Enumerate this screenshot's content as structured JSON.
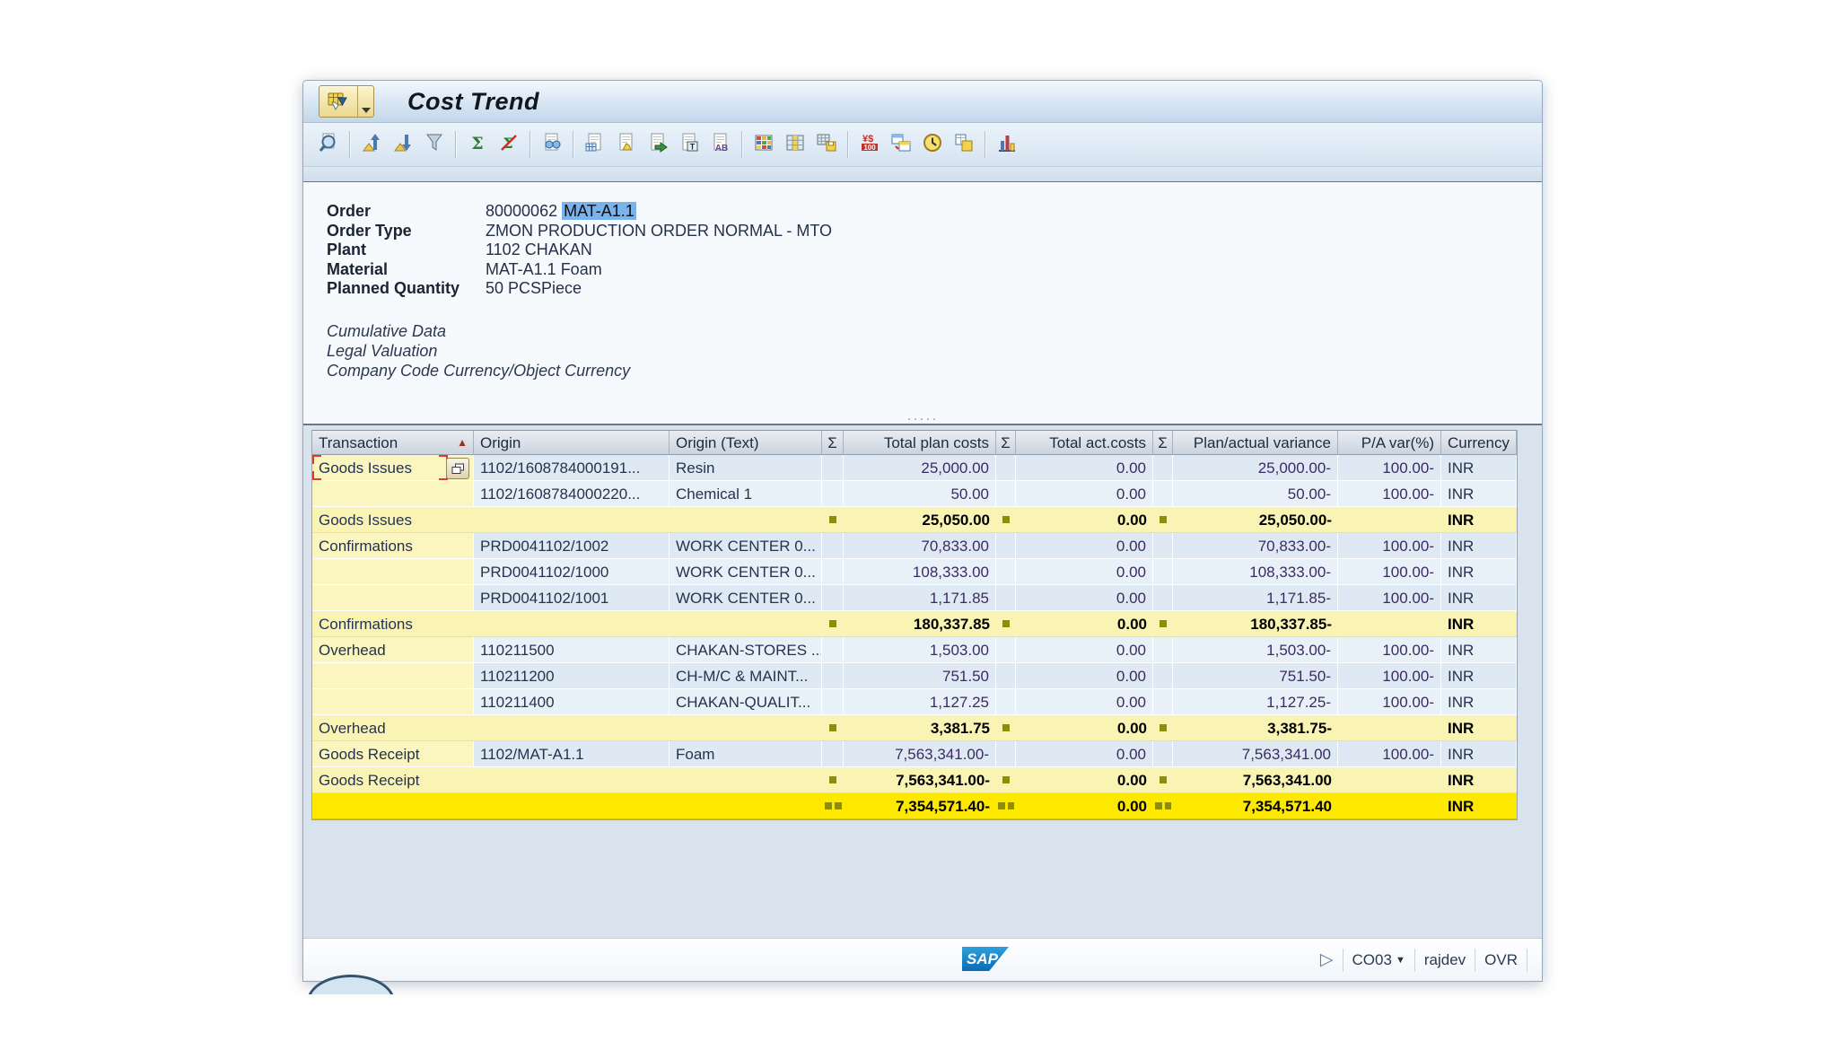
{
  "window": {
    "title": "Cost Trend"
  },
  "toolbar": {
    "groups": [
      [
        "details"
      ],
      [
        "sort-ascending",
        "sort-descending",
        "filter"
      ],
      [
        "sum",
        "subtotal"
      ],
      [
        "print-preview"
      ],
      [
        "local-file",
        "mail",
        "export",
        "word-processing",
        "abc-analysis"
      ],
      [
        "views",
        "change-layout",
        "save-layout"
      ],
      [
        "currency",
        "graph",
        "history",
        "layout"
      ],
      [
        "chart"
      ]
    ]
  },
  "header": {
    "fields": [
      {
        "label": "Order",
        "value": "80000062",
        "highlight": "MAT-A1.1"
      },
      {
        "label": "Order Type",
        "value": "ZMON PRODUCTION ORDER NORMAL - MTO"
      },
      {
        "label": "Plant",
        "value": "1102 CHAKAN"
      },
      {
        "label": "Material",
        "value": "MAT-A1.1 Foam"
      },
      {
        "label": "Planned Quantity",
        "value": "50 PCSPiece"
      }
    ],
    "notes": [
      "Cumulative Data",
      "Legal Valuation",
      "Company Code Currency/Object Currency"
    ]
  },
  "table": {
    "columns": [
      "Transaction",
      "Origin",
      "Origin (Text)",
      "Σ",
      "Total plan costs",
      "Σ",
      "Total act.costs",
      "Σ",
      "Plan/actual variance",
      "P/A var(%)",
      "Currency"
    ],
    "sort_column": "Transaction",
    "rows": [
      {
        "type": "detail",
        "selected": true,
        "cells": [
          "Goods Issues",
          "1102/1608784000191...",
          "Resin",
          "",
          "25,000.00",
          "",
          "0.00",
          "",
          "25,000.00-",
          "100.00-",
          "INR"
        ]
      },
      {
        "type": "detail",
        "cells": [
          "",
          "1102/1608784000220...",
          "Chemical 1",
          "",
          "50.00",
          "",
          "0.00",
          "",
          "50.00-",
          "100.00-",
          "INR"
        ]
      },
      {
        "type": "subtotal",
        "cells": [
          "Goods Issues",
          "",
          "",
          "",
          "25,050.00",
          "",
          "0.00",
          "",
          "25,050.00-",
          "",
          "INR"
        ]
      },
      {
        "type": "detail",
        "cells": [
          "Confirmations",
          "PRD0041102/1002",
          "WORK CENTER 0...",
          "",
          "70,833.00",
          "",
          "0.00",
          "",
          "70,833.00-",
          "100.00-",
          "INR"
        ]
      },
      {
        "type": "detail",
        "cells": [
          "",
          "PRD0041102/1000",
          "WORK CENTER 0...",
          "",
          "108,333.00",
          "",
          "0.00",
          "",
          "108,333.00-",
          "100.00-",
          "INR"
        ]
      },
      {
        "type": "detail",
        "cells": [
          "",
          "PRD0041102/1001",
          "WORK CENTER 0...",
          "",
          "1,171.85",
          "",
          "0.00",
          "",
          "1,171.85-",
          "100.00-",
          "INR"
        ]
      },
      {
        "type": "subtotal",
        "cells": [
          "Confirmations",
          "",
          "",
          "",
          "180,337.85",
          "",
          "0.00",
          "",
          "180,337.85-",
          "",
          "INR"
        ]
      },
      {
        "type": "detail",
        "cells": [
          "Overhead",
          "110211500",
          "CHAKAN-STORES ...",
          "",
          "1,503.00",
          "",
          "0.00",
          "",
          "1,503.00-",
          "100.00-",
          "INR"
        ]
      },
      {
        "type": "detail",
        "cells": [
          "",
          "110211200",
          "CH-M/C & MAINT...",
          "",
          "751.50",
          "",
          "0.00",
          "",
          "751.50-",
          "100.00-",
          "INR"
        ]
      },
      {
        "type": "detail",
        "cells": [
          "",
          "110211400",
          "CHAKAN-QUALIT...",
          "",
          "1,127.25",
          "",
          "0.00",
          "",
          "1,127.25-",
          "100.00-",
          "INR"
        ]
      },
      {
        "type": "subtotal",
        "cells": [
          "Overhead",
          "",
          "",
          "",
          "3,381.75",
          "",
          "0.00",
          "",
          "3,381.75-",
          "",
          "INR"
        ]
      },
      {
        "type": "detail",
        "cells": [
          "Goods Receipt",
          "1102/MAT-A1.1",
          "Foam",
          "",
          "7,563,341.00-",
          "",
          "0.00",
          "",
          "7,563,341.00",
          "100.00-",
          "INR"
        ]
      },
      {
        "type": "subtotal",
        "cells": [
          "Goods Receipt",
          "",
          "",
          "",
          "7,563,341.00-",
          "",
          "0.00",
          "",
          "7,563,341.00",
          "",
          "INR"
        ]
      },
      {
        "type": "grand",
        "cells": [
          "",
          "",
          "",
          "",
          "7,354,571.40-",
          "",
          "0.00",
          "",
          "7,354,571.40",
          "",
          "INR"
        ]
      }
    ]
  },
  "statusbar": {
    "logo": "SAP",
    "transaction_code": "CO03",
    "user": "rajdev",
    "mode": "OVR"
  },
  "colors": {
    "selection_highlight": "#7ab2ea",
    "transaction_column": "#fbf5bf",
    "subtotal_row": "#faf4b4",
    "grand_total_row": "#fde800",
    "detail_row_a": "#dfe9f4",
    "detail_row_b": "#e8f0f8",
    "sigma_square": "#8f8d04",
    "sort_arrow": "#a62c20"
  }
}
